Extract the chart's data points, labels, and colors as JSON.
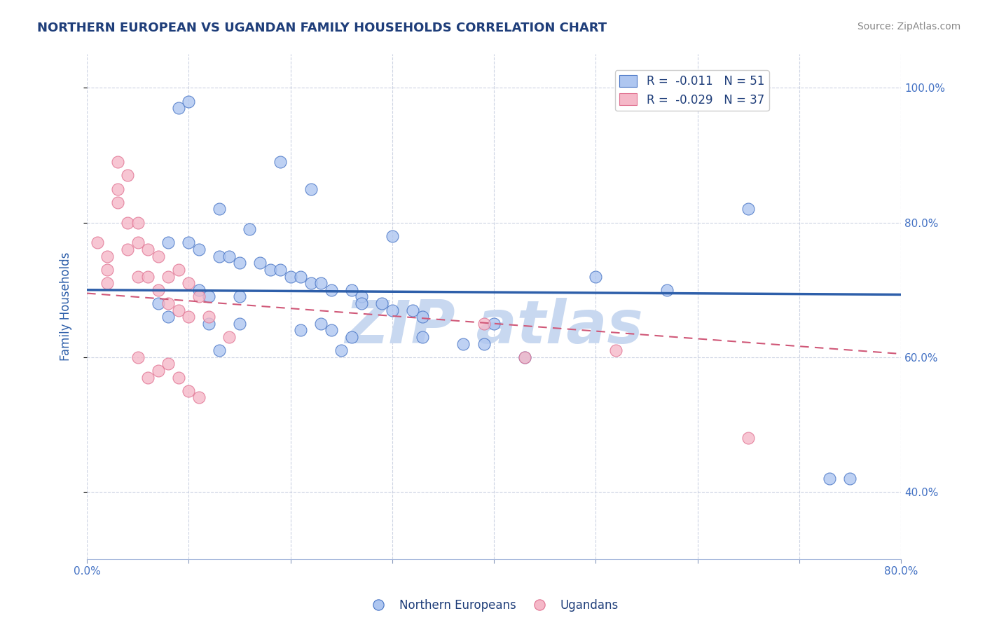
{
  "title": "NORTHERN EUROPEAN VS UGANDAN FAMILY HOUSEHOLDS CORRELATION CHART",
  "source_text": "Source: ZipAtlas.com",
  "ylabel": "Family Households",
  "xlim": [
    0.0,
    0.8
  ],
  "ylim": [
    0.3,
    1.05
  ],
  "xticks": [
    0.0,
    0.1,
    0.2,
    0.3,
    0.4,
    0.5,
    0.6,
    0.7,
    0.8
  ],
  "xtick_labels": [
    "0.0%",
    "",
    "",
    "",
    "",
    "",
    "",
    "",
    "80.0%"
  ],
  "ytick_labels": [
    "40.0%",
    "60.0%",
    "80.0%",
    "100.0%"
  ],
  "yticks": [
    0.4,
    0.6,
    0.8,
    1.0
  ],
  "legend_r1": "R =  -0.011   N = 51",
  "legend_r2": "R =  -0.029   N = 37",
  "legend_label1": "Northern Europeans",
  "legend_label2": "Ugandans",
  "blue_color": "#AEC6F0",
  "pink_color": "#F5B8C8",
  "blue_edge_color": "#4472C4",
  "pink_edge_color": "#E07090",
  "blue_line_color": "#2E5FAA",
  "pink_line_color": "#D05878",
  "title_color": "#1F3E7A",
  "axis_label_color": "#2E5FAA",
  "tick_color": "#4472C4",
  "watermark_color": "#C8D8F0",
  "watermark_text": "ZIP atlas",
  "blue_scatter_x": [
    0.19,
    0.22,
    0.13,
    0.16,
    0.3,
    0.08,
    0.1,
    0.11,
    0.13,
    0.14,
    0.15,
    0.17,
    0.18,
    0.19,
    0.2,
    0.21,
    0.22,
    0.23,
    0.24,
    0.26,
    0.27,
    0.27,
    0.29,
    0.3,
    0.32,
    0.33,
    0.12,
    0.15,
    0.21,
    0.24,
    0.26,
    0.33,
    0.37,
    0.39,
    0.13,
    0.25,
    0.43,
    0.5,
    0.57,
    0.65,
    0.73,
    0.75,
    0.09,
    0.1,
    0.11,
    0.08,
    0.12,
    0.15,
    0.07,
    0.23,
    0.4
  ],
  "blue_scatter_y": [
    0.89,
    0.85,
    0.82,
    0.79,
    0.78,
    0.77,
    0.77,
    0.76,
    0.75,
    0.75,
    0.74,
    0.74,
    0.73,
    0.73,
    0.72,
    0.72,
    0.71,
    0.71,
    0.7,
    0.7,
    0.69,
    0.68,
    0.68,
    0.67,
    0.67,
    0.66,
    0.65,
    0.65,
    0.64,
    0.64,
    0.63,
    0.63,
    0.62,
    0.62,
    0.61,
    0.61,
    0.6,
    0.72,
    0.7,
    0.82,
    0.42,
    0.42,
    0.97,
    0.98,
    0.7,
    0.66,
    0.69,
    0.69,
    0.68,
    0.65,
    0.65
  ],
  "pink_scatter_x": [
    0.01,
    0.02,
    0.02,
    0.02,
    0.03,
    0.03,
    0.04,
    0.04,
    0.05,
    0.05,
    0.05,
    0.06,
    0.06,
    0.07,
    0.07,
    0.08,
    0.08,
    0.09,
    0.09,
    0.1,
    0.1,
    0.11,
    0.12,
    0.14,
    0.03,
    0.04,
    0.05,
    0.06,
    0.07,
    0.08,
    0.09,
    0.1,
    0.11,
    0.39,
    0.43,
    0.52,
    0.65
  ],
  "pink_scatter_y": [
    0.77,
    0.75,
    0.73,
    0.71,
    0.85,
    0.83,
    0.8,
    0.76,
    0.8,
    0.77,
    0.72,
    0.76,
    0.72,
    0.75,
    0.7,
    0.72,
    0.68,
    0.73,
    0.67,
    0.71,
    0.66,
    0.69,
    0.66,
    0.63,
    0.89,
    0.87,
    0.6,
    0.57,
    0.58,
    0.59,
    0.57,
    0.55,
    0.54,
    0.65,
    0.6,
    0.61,
    0.48
  ]
}
